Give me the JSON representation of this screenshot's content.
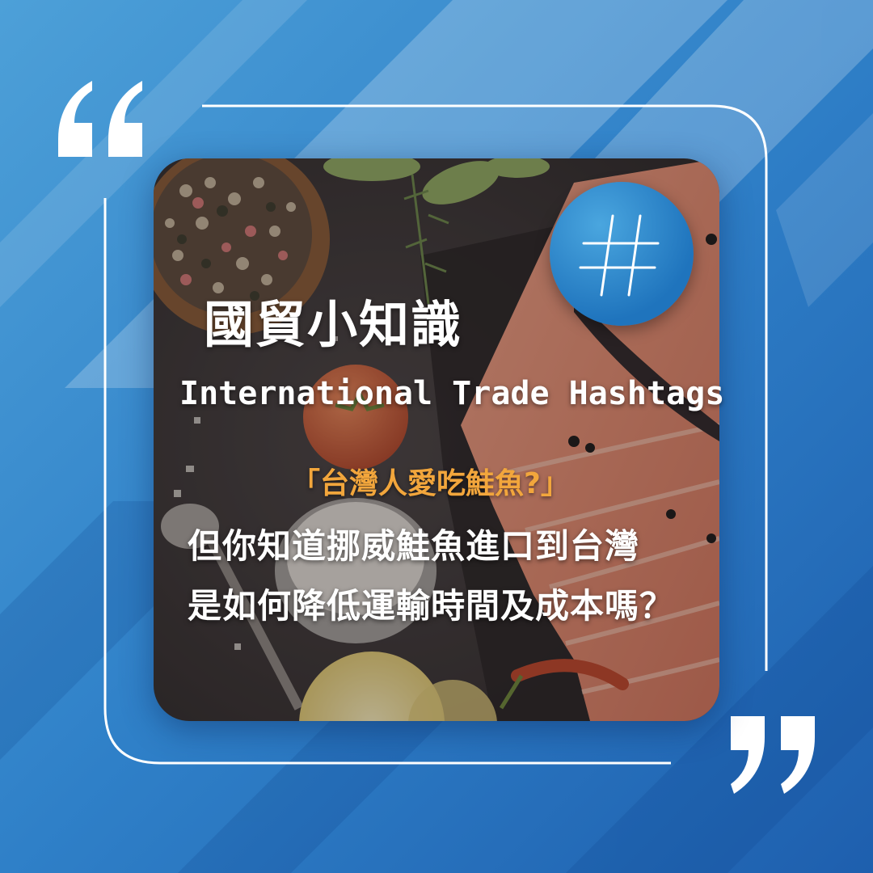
{
  "post": {
    "title_cn": "國貿小知識",
    "title_en": "International Trade Hashtags",
    "highlight": "「台灣人愛吃鮭魚?」",
    "body_line1": "但你知道挪威鮭魚進口到台灣",
    "body_line2": "是如何降低運輸時間及成本嗎？"
  },
  "icons": {
    "open_quote": "open-quote-icon",
    "close_quote": "close-quote-icon",
    "hashtag": "hashtag-icon"
  },
  "colors": {
    "background": "#2f7fc6",
    "accent_orange": "#f2a63c",
    "badge_blue": "#1f74bd",
    "text": "#ffffff"
  }
}
